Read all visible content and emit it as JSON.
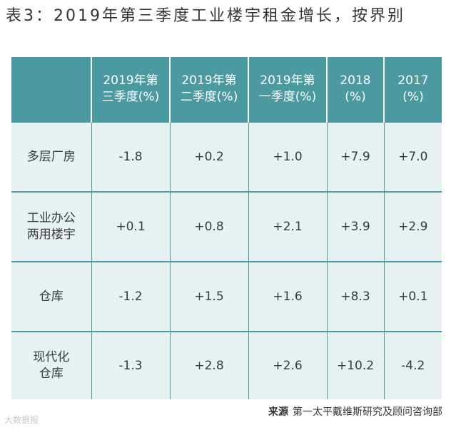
{
  "title": "表3：2019年第三季度工业楼宇租金增长，按界别",
  "table": {
    "headers": [
      {
        "line1": "",
        "line2": ""
      },
      {
        "line1": "2019年第",
        "line2": "三季度(%)"
      },
      {
        "line1": "2019年第",
        "line2": "二季度(%)"
      },
      {
        "line1": "2019年第",
        "line2": "一季度(%)"
      },
      {
        "line1": "2018",
        "line2": "(%)"
      },
      {
        "line1": "2017",
        "line2": "(%)"
      }
    ],
    "rows": [
      {
        "label1": "多层厂房",
        "label2": "",
        "values": [
          "-1.8",
          "+0.2",
          "+1.0",
          "+7.9",
          "+7.0"
        ]
      },
      {
        "label1": "工业办公",
        "label2": "两用楼宇",
        "values": [
          "+0.1",
          "+0.8",
          "+2.1",
          "+3.9",
          "+2.9"
        ]
      },
      {
        "label1": "仓库",
        "label2": "",
        "values": [
          "-1.2",
          "+1.5",
          "+1.6",
          "+8.3",
          "+0.1"
        ]
      },
      {
        "label1": "现代化",
        "label2": "仓库",
        "values": [
          "-1.3",
          "+2.8",
          "+2.6",
          "+10.2",
          "-4.2"
        ]
      }
    ]
  },
  "source": {
    "label": "来源",
    "text": "第一太平戴维斯研究及顾问咨询部"
  },
  "watermark": "大数据报"
}
